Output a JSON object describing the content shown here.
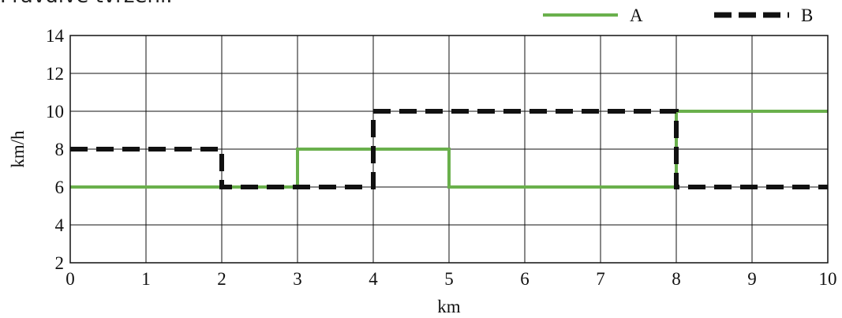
{
  "header_text": "Pravdivé tvrzení.",
  "chart_data": {
    "type": "line",
    "title": "",
    "xlabel": "km",
    "ylabel": "km/h",
    "xlim": [
      0,
      10
    ],
    "ylim": [
      2,
      14
    ],
    "x_ticks": [
      0,
      1,
      2,
      3,
      4,
      5,
      6,
      7,
      8,
      9,
      10
    ],
    "y_ticks": [
      2,
      4,
      6,
      8,
      10,
      12,
      14
    ],
    "grid": true,
    "legend_position": "top-right",
    "series": [
      {
        "name": "A",
        "color": "#6ab04c",
        "style": "solid",
        "points": [
          [
            0,
            6
          ],
          [
            3,
            6
          ],
          [
            3,
            8
          ],
          [
            5,
            8
          ],
          [
            5,
            6
          ],
          [
            8,
            6
          ],
          [
            8,
            10
          ],
          [
            10,
            10
          ]
        ]
      },
      {
        "name": "B",
        "color": "#111111",
        "style": "dashed",
        "points": [
          [
            0,
            8
          ],
          [
            2,
            8
          ],
          [
            2,
            6
          ],
          [
            4,
            6
          ],
          [
            4,
            10
          ],
          [
            8,
            10
          ],
          [
            8,
            6
          ],
          [
            10,
            6
          ]
        ]
      }
    ]
  }
}
